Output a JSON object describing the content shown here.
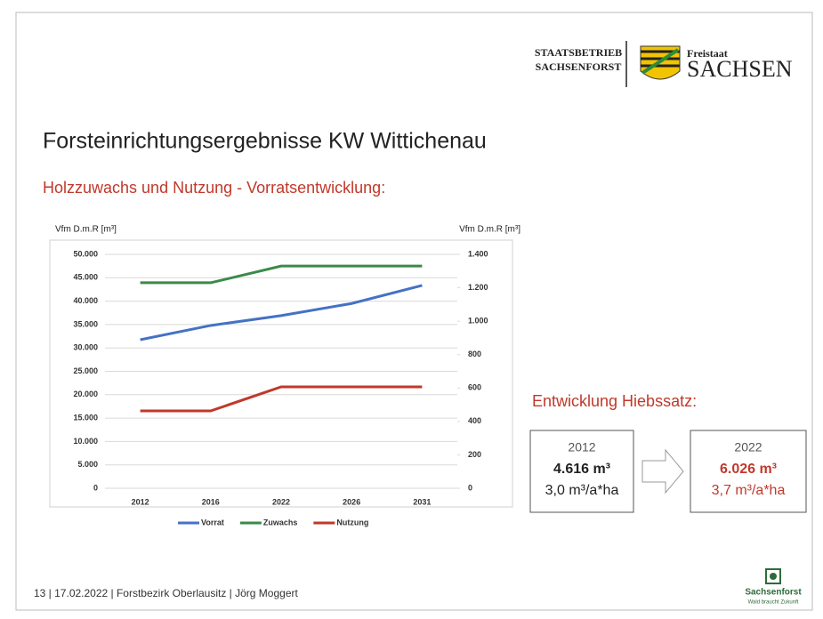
{
  "header": {
    "org_line1": "STAATSBETRIEB",
    "org_line2": "SACHSENFORST",
    "state_small": "Freistaat",
    "state_big": "SACHSEN"
  },
  "title": "Forsteinrichtungsergebnisse KW Wittichenau",
  "subtitle": "Holzzuwachs und Nutzung - Vorratsentwicklung:",
  "chart_data": {
    "type": "line",
    "ylabel": "Vfm D.m.R [m³]",
    "y2label": "Vfm D.m.R [m³]",
    "categories": [
      "2012",
      "2016",
      "2022",
      "2026",
      "2031"
    ],
    "series": [
      {
        "name": "Vorrat",
        "color": "#4472c4",
        "values": [
          31750,
          34800,
          36900,
          39500,
          43350
        ]
      },
      {
        "name": "Zuwachs",
        "color": "#3a8a4a",
        "axis": "y2",
        "values": [
          1230,
          1230,
          1330,
          1330,
          1330
        ]
      },
      {
        "name": "Nutzung",
        "color": "#c0392b",
        "axis": "y2",
        "values": [
          463,
          463,
          607,
          607,
          607
        ]
      }
    ],
    "ylim": [
      0,
      50000
    ],
    "yticks": [
      0,
      {
        "value": 5000,
        "label": "5.000"
      },
      {
        "value": 10000,
        "label": "10.000"
      },
      {
        "value": 15000,
        "label": "15.000"
      },
      {
        "value": 20000,
        "label": "20.000"
      },
      {
        "value": 25000,
        "label": "25.000"
      },
      {
        "value": 30000,
        "label": "30.000"
      },
      {
        "value": 35000,
        "label": "35.000"
      },
      {
        "value": 40000,
        "label": "40.000"
      },
      {
        "value": 45000,
        "label": "45.000"
      },
      {
        "value": 50000,
        "label": "50.000"
      }
    ],
    "y2lim": [
      0,
      1400
    ],
    "y2ticks": [
      0,
      200,
      400,
      600,
      800,
      {
        "value": 1000,
        "label": "1.000"
      },
      {
        "value": 1200,
        "label": "1.200"
      },
      {
        "value": 1400,
        "label": "1.400"
      }
    ],
    "grid": true,
    "legend": "bottom"
  },
  "hiebssatz": {
    "heading": "Entwicklung Hiebssatz:",
    "boxes": [
      {
        "year": "2012",
        "total": "4.616 m³",
        "per_ha": "3,0 m³/a*ha"
      },
      {
        "year": "2022",
        "total": "6.026 m³",
        "per_ha": "3,7 m³/a*ha"
      }
    ]
  },
  "footer": {
    "text": "13 | 17.02.2022 | Forstbezirk Oberlausitz | Jörg Moggert",
    "logo_name": "Sachsenforst",
    "logo_slogan": "Wald braucht Zukunft"
  }
}
